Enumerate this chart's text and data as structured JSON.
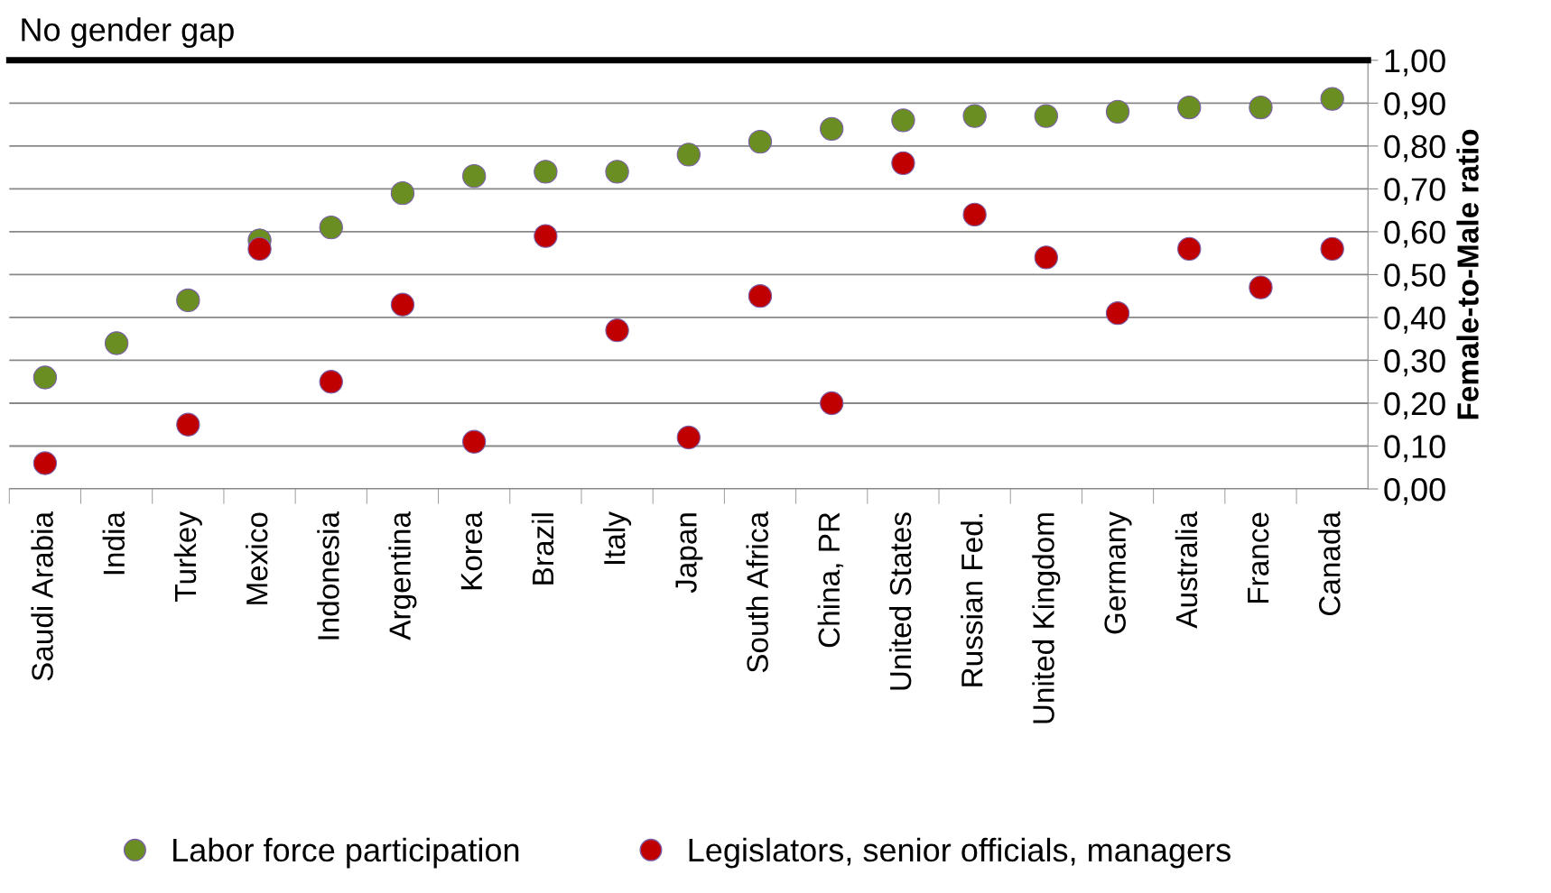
{
  "chart_data": {
    "type": "scatter",
    "categories": [
      "Saudi Arabia",
      "India",
      "Turkey",
      "Mexico",
      "Indonesia",
      "Argentina",
      "Korea",
      "Brazil",
      "Italy",
      "Japan",
      "South Africa",
      "China, PR",
      "United States",
      "Russian Fed.",
      "United Kingdom",
      "Germany",
      "Australia",
      "France",
      "Canada"
    ],
    "series": [
      {
        "name": "Labor force participation",
        "color": "#6b8e23",
        "values": [
          0.26,
          0.34,
          0.44,
          0.58,
          0.61,
          0.69,
          0.73,
          0.74,
          0.74,
          0.78,
          0.81,
          0.84,
          0.86,
          0.87,
          0.87,
          0.88,
          0.89,
          0.89,
          0.91
        ]
      },
      {
        "name": "Legislators, senior officials, managers",
        "color": "#c00000",
        "values": [
          0.06,
          null,
          0.15,
          0.56,
          0.25,
          0.43,
          0.11,
          0.59,
          0.37,
          0.12,
          0.45,
          0.2,
          0.76,
          0.64,
          0.54,
          0.41,
          0.56,
          0.47,
          0.56
        ]
      }
    ],
    "ylabel": "Female-to-Male ratio",
    "ylim": [
      0,
      1.0
    ],
    "yticks": [
      {
        "value": 0,
        "label": "0,00"
      },
      {
        "value": 0.1,
        "label": "0,10"
      },
      {
        "value": 0.2,
        "label": "0,20"
      },
      {
        "value": 0.3,
        "label": "0,30"
      },
      {
        "value": 0.4,
        "label": "0,40"
      },
      {
        "value": 0.5,
        "label": "0,50"
      },
      {
        "value": 0.6,
        "label": "0,60"
      },
      {
        "value": 0.7,
        "label": "0,70"
      },
      {
        "value": 0.8,
        "label": "0,80"
      },
      {
        "value": 0.9,
        "label": "0,90"
      },
      {
        "value": 1.0,
        "label": "1,00"
      }
    ],
    "ref_lines": [
      {
        "axis": "y",
        "value": 1.0,
        "label": "No gender gap",
        "color": "#000000"
      }
    ],
    "grid": "y",
    "legend": "bottom",
    "marker": "circle"
  }
}
